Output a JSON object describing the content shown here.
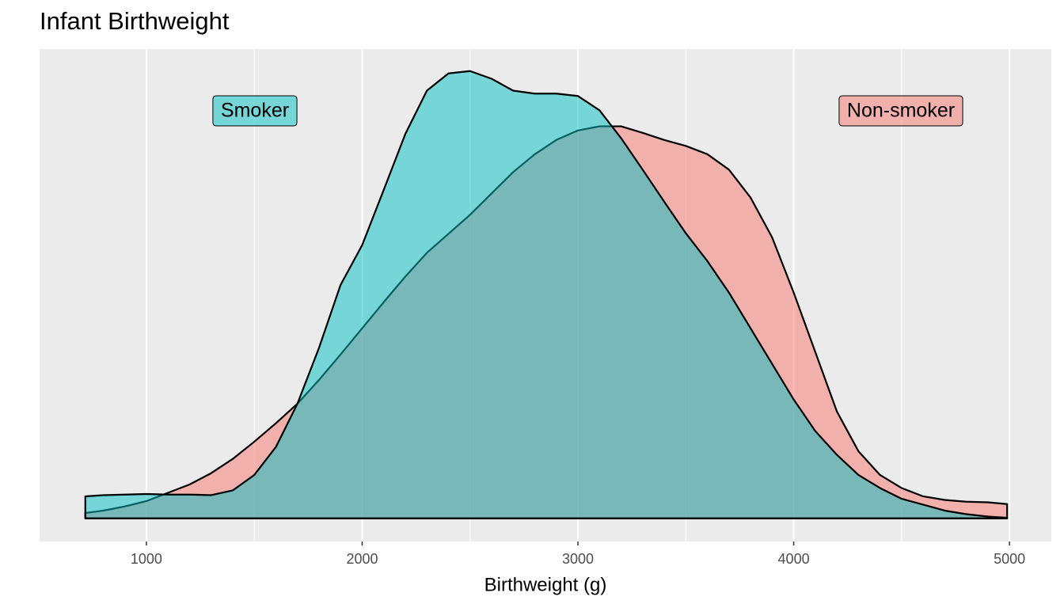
{
  "chart_data": {
    "type": "area",
    "title": "Infant Birthweight",
    "x_label": "Birthweight (g)",
    "x": [
      717,
      800,
      900,
      1000,
      1100,
      1200,
      1300,
      1400,
      1500,
      1600,
      1700,
      1800,
      1900,
      2000,
      2100,
      2200,
      2300,
      2400,
      2500,
      2600,
      2700,
      2800,
      2900,
      3000,
      3100,
      3200,
      3300,
      3400,
      3500,
      3600,
      3700,
      3800,
      3900,
      4000,
      4100,
      4200,
      4300,
      4400,
      4500,
      4600,
      4700,
      4800,
      4900,
      4989
    ],
    "series": [
      {
        "name": "Non-smoker",
        "color": "#F8766D",
        "values": [
          9e-06,
          1.3e-05,
          2e-05,
          2.9e-05,
          4.3e-05,
          5.7e-05,
          7.6e-05,
          0.0001,
          0.000129,
          0.00016,
          0.000193,
          0.000233,
          0.000276,
          0.00032,
          0.000364,
          0.000407,
          0.000447,
          0.000479,
          0.000511,
          0.000547,
          0.000583,
          0.000613,
          0.000637,
          0.000653,
          0.00066,
          0.00066,
          0.000649,
          0.000637,
          0.000627,
          0.000613,
          0.000587,
          0.00054,
          0.000473,
          0.00038,
          0.00028,
          0.00018,
          0.000113,
          7.3e-05,
          5.1e-05,
          3.7e-05,
          3.1e-05,
          2.8e-05,
          2.7e-05,
          2.4e-05
        ]
      },
      {
        "name": "Smoker",
        "color": "#00BFC4",
        "values": [
          3.7e-05,
          3.9e-05,
          4e-05,
          4.1e-05,
          4e-05,
          4e-05,
          3.9e-05,
          4.7e-05,
          7.3e-05,
          0.00012,
          0.000193,
          0.000287,
          0.000393,
          0.00046,
          0.000553,
          0.000647,
          0.00072,
          0.000749,
          0.000753,
          0.00074,
          0.00072,
          0.000715,
          0.000715,
          0.000711,
          0.000687,
          0.00064,
          0.000587,
          0.000533,
          0.00048,
          0.000433,
          0.00038,
          0.00032,
          0.00026,
          0.0002,
          0.000147,
          0.000107,
          7.3e-05,
          5.1e-05,
          3.3e-05,
          2.3e-05,
          1.3e-05,
          7e-06,
          3e-06,
          1e-06
        ]
      }
    ],
    "xlim": [
      505,
      5194
    ],
    "ylim": [
      -3.9e-05,
      0.00079
    ],
    "xticks": [
      1000,
      2000,
      3000,
      4000,
      5000
    ],
    "grid": true
  }
}
